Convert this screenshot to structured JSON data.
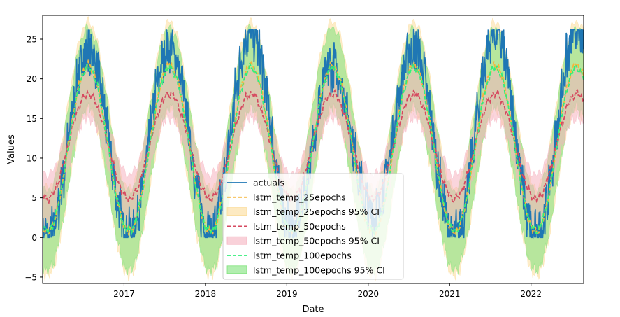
{
  "chart_data": {
    "type": "line",
    "xlabel": "Date",
    "ylabel": "Values",
    "xlim": [
      "2016-01-01",
      "2022-08-25"
    ],
    "ylim": [
      -5.8,
      28
    ],
    "x_ticks": [
      "2017",
      "2018",
      "2019",
      "2020",
      "2021",
      "2022"
    ],
    "y_ticks": [
      -5,
      0,
      5,
      10,
      15,
      20,
      25
    ],
    "grid": false,
    "legend_position": "lower-center",
    "period_years": 1,
    "series": [
      {
        "name": "actuals",
        "style": "solid",
        "color": "#1f77b4",
        "mean": 11.6,
        "amplitude": 11.2,
        "peak_dates": [
          "2016-07-20",
          "2017-07-25",
          "2018-07-20",
          "2019-07-25",
          "2020-08-01",
          "2021-07-25",
          "2022-07-30"
        ],
        "peak_values": [
          23.8,
          24.0,
          26.0,
          21.5,
          24.0,
          26.0,
          26.0
        ],
        "trough_dates": [
          "2016-01-01",
          "2017-01-25",
          "2018-01-25",
          "2019-01-30",
          "2020-01-25",
          "2021-01-20",
          "2022-01-15"
        ],
        "trough_values": [
          0.0,
          0.5,
          0.5,
          1.0,
          3.0,
          0.0,
          0.0
        ]
      },
      {
        "name": "lstm_temp_25epochs",
        "style": "dashed",
        "color": "#f5b53c",
        "mean": 11.2,
        "amplitude": 10.5,
        "ci_label": "lstm_temp_25epochs 95% CI",
        "ci_halfwidth": 5.5,
        "ci_color": "#fbdc9a"
      },
      {
        "name": "lstm_temp_50epochs",
        "style": "dashed",
        "color": "#d64a60",
        "mean": 11.5,
        "amplitude": 6.6,
        "ci_label": "lstm_temp_50epochs 95% CI",
        "ci_halfwidth": 3.0,
        "ci_color": "#f5b3c0"
      },
      {
        "name": "lstm_temp_100epochs",
        "style": "dashed",
        "color": "#33ee7a",
        "mean": 11.1,
        "amplitude": 10.3,
        "ci_label": "lstm_temp_100epochs 95% CI",
        "ci_halfwidth": 5.0,
        "ci_color": "#7ee27a"
      }
    ]
  }
}
